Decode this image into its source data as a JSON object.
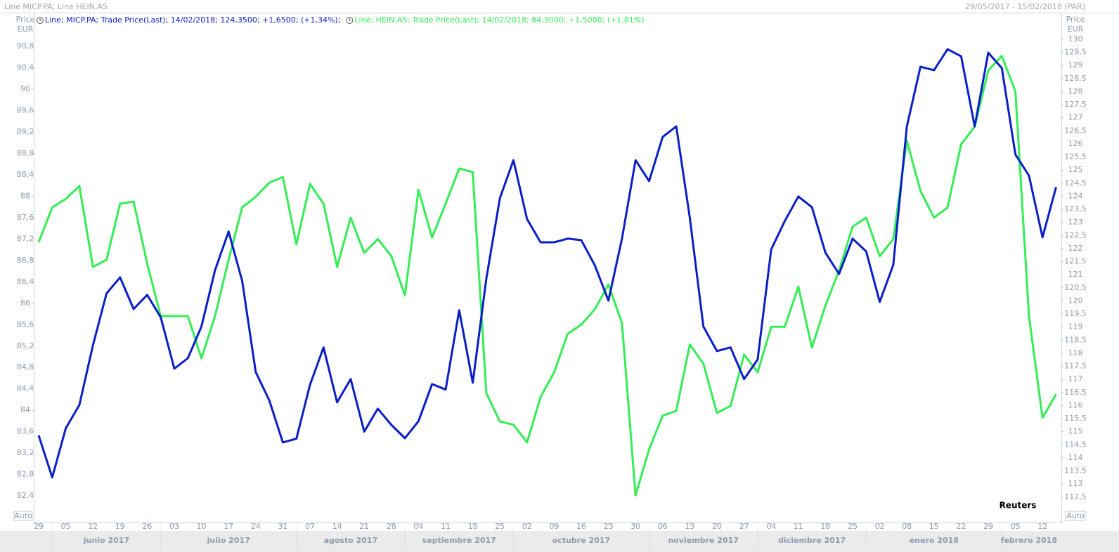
{
  "header": {
    "title": "Line MICP.PA; Line HEIN.AS",
    "range": "29/05/2017 - 15/02/2018 (PAR)"
  },
  "chart_data": {
    "type": "line",
    "y_label": [
      "Price",
      "EUR"
    ],
    "y2_label": [
      "Price",
      "EUR"
    ],
    "y_mode": "Auto",
    "y2_mode": "Auto",
    "annotation": "Reuters",
    "months": [
      "junio 2017",
      "julio 2017",
      "agosto 2017",
      "septiembre 2017",
      "octubre 2017",
      "noviembre 2017",
      "diciembre 2017",
      "enero 2018",
      "febrero 2018"
    ],
    "categories": [
      "29",
      null,
      "05",
      null,
      "12",
      null,
      "19",
      null,
      "26",
      null,
      "03",
      null,
      "10",
      null,
      "17",
      null,
      "24",
      null,
      "31",
      null,
      "07",
      null,
      "14",
      null,
      "21",
      null,
      "28",
      null,
      "04",
      null,
      "11",
      null,
      "18",
      null,
      "25",
      null,
      "02",
      null,
      "09",
      null,
      "16",
      null,
      "23",
      null,
      "30",
      null,
      "06",
      null,
      "13",
      null,
      "20",
      null,
      "27",
      null,
      "04",
      null,
      "11",
      null,
      "18",
      null,
      "25",
      null,
      "02",
      null,
      "08",
      null,
      "15",
      null,
      "22",
      null,
      "29",
      null,
      "05",
      null,
      "12",
      null
    ],
    "series": [
      {
        "name": "Line; MICP.PA; Trade Price(Last);  14/02/2018;  124,3500;  +1,6500;  (+1,34%);",
        "color": "#0a1ec8",
        "axis": "y2",
        "values": [
          114.86,
          113.25,
          115.13,
          116.02,
          118.3,
          120.28,
          120.9,
          119.69,
          120.23,
          119.37,
          117.41,
          117.81,
          119.02,
          121.17,
          122.65,
          120.77,
          117.28,
          116.2,
          114.59,
          114.73,
          116.79,
          118.22,
          116.12,
          117.01,
          115.0,
          115.88,
          115.26,
          114.75,
          115.4,
          116.82,
          116.61,
          119.64,
          116.87,
          120.85,
          123.93,
          125.38,
          123.13,
          122.24,
          122.24,
          122.38,
          122.32,
          121.36,
          120.01,
          122.38,
          125.38,
          124.58,
          126.27,
          126.67,
          123.18,
          119.02,
          118.08,
          118.22,
          117.01,
          117.76,
          121.97,
          123.05,
          123.99,
          123.58,
          121.84,
          121.03,
          122.38,
          121.89,
          119.96,
          121.38,
          126.67,
          128.95,
          128.82,
          129.62,
          129.35,
          126.67,
          129.49,
          128.9,
          125.6,
          124.79,
          122.43,
          124.35
        ]
      },
      {
        "name": "Line; HEIN.AS; Trade Price(Last);  14/02/2018;  84,3000;  +1,5000;  (+1,81%)",
        "color": "#33ee55",
        "axis": "y",
        "values": [
          87.14,
          87.79,
          87.95,
          88.19,
          86.68,
          86.81,
          87.86,
          87.9,
          86.74,
          85.76,
          85.76,
          85.76,
          84.97,
          85.76,
          86.81,
          87.79,
          87.99,
          88.25,
          88.36,
          87.1,
          88.23,
          87.86,
          86.68,
          87.6,
          86.94,
          87.2,
          86.88,
          86.15,
          88.12,
          87.23,
          87.86,
          88.52,
          88.45,
          84.32,
          83.79,
          83.73,
          83.4,
          84.25,
          84.71,
          85.43,
          85.6,
          85.89,
          86.35,
          85.63,
          82.41,
          83.27,
          83.9,
          83.99,
          85.23,
          84.87,
          83.95,
          84.08,
          85.04,
          84.71,
          85.56,
          85.56,
          86.31,
          85.17,
          85.96,
          86.61,
          87.43,
          87.6,
          86.88,
          87.2,
          89.04,
          88.1,
          87.6,
          87.79,
          88.97,
          89.3,
          90.35,
          90.62,
          89.96,
          85.76,
          83.86,
          84.3
        ]
      }
    ],
    "ylim": [
      81.89,
      91.43
    ],
    "yticks": [
      {
        "value": 82.4,
        "label": "82,4"
      },
      {
        "value": 82.8,
        "label": "82,8"
      },
      {
        "value": 83.2,
        "label": "83,2"
      },
      {
        "value": 83.6,
        "label": "83,6"
      },
      84,
      {
        "value": 84.4,
        "label": "84,4"
      },
      {
        "value": 84.8,
        "label": "84,8"
      },
      {
        "value": 85.2,
        "label": "85,2"
      },
      {
        "value": 85.6,
        "label": "85,6"
      },
      86,
      {
        "value": 86.4,
        "label": "86,4"
      },
      {
        "value": 86.8,
        "label": "86,8"
      },
      {
        "value": 87.2,
        "label": "87,2"
      },
      {
        "value": 87.6,
        "label": "87,6"
      },
      88,
      {
        "value": 88.4,
        "label": "88,4"
      },
      {
        "value": 88.8,
        "label": "88,8"
      },
      {
        "value": 89.2,
        "label": "89,2"
      },
      {
        "value": 89.6,
        "label": "89,6"
      },
      90,
      {
        "value": 90.4,
        "label": "90,4"
      },
      {
        "value": 90.8,
        "label": "90,8"
      }
    ],
    "y2lim": [
      111.5,
      131.02
    ],
    "y2ticks": [
      {
        "value": 112.5,
        "label": "112,5"
      },
      113,
      {
        "value": 113.5,
        "label": "113,5"
      },
      114,
      {
        "value": 114.5,
        "label": "114,5"
      },
      115,
      {
        "value": 115.5,
        "label": "115,5"
      },
      116,
      {
        "value": 116.5,
        "label": "116,5"
      },
      117,
      {
        "value": 117.5,
        "label": "117,5"
      },
      118,
      {
        "value": 118.5,
        "label": "118,5"
      },
      119,
      {
        "value": 119.5,
        "label": "119,5"
      },
      120,
      {
        "value": 120.5,
        "label": "120,5"
      },
      121,
      {
        "value": 121.5,
        "label": "121,5"
      },
      122,
      {
        "value": 122.5,
        "label": "122,5"
      },
      123,
      {
        "value": 123.5,
        "label": "123,5"
      },
      124,
      {
        "value": 124.5,
        "label": "124,5"
      },
      125,
      {
        "value": 125.5,
        "label": "125,5"
      },
      126,
      {
        "value": 126.5,
        "label": "126,5"
      },
      127,
      {
        "value": 127.5,
        "label": "127,5"
      },
      128,
      {
        "value": 128.5,
        "label": "128,5"
      },
      129,
      {
        "value": 129.5,
        "label": "129,5"
      },
      130
    ],
    "grid": false
  }
}
